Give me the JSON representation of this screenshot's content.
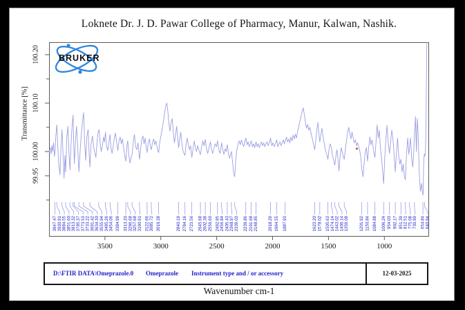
{
  "page": {
    "title": "Loknete Dr. J. D. Pawar College of Pharmacy, Manur, Kalwan, Nashik."
  },
  "logo": {
    "text": "BRUKER"
  },
  "footer": {
    "file_path": "D:\\FTIR DATA\\Omeprazole.0",
    "sample_name": "Omeprazole",
    "accessory": "Instrument type and / or accessory",
    "date": "12-03-2025"
  },
  "colors": {
    "trace": "#9b9ee2",
    "leader": "#9b9ee2",
    "peak_label": "#2525cc",
    "footer_text": "#2222cc",
    "logo_blue": "#2e86de",
    "marker": "#cc2020",
    "axis": "#5a5a5a",
    "text": "#141414"
  },
  "chart_data": {
    "type": "line",
    "title": "Loknete Dr. J. D. Pawar College of Pharmacy, Manur, Kalwan, Nashik.",
    "xlabel": "Wavenumber cm-1",
    "ylabel": "Transmittance [%]",
    "x_axis": {
      "min": 600,
      "max": 4000,
      "reversed": true,
      "ticks": [
        3500,
        3000,
        2500,
        2000,
        1500,
        1000
      ]
    },
    "y_axis": {
      "min": 99.86,
      "max": 100.226,
      "ticks": [
        100.2,
        100.1,
        100.0,
        99.95
      ],
      "tick_labels": [
        "100.20",
        "100.10",
        "100.00",
        "99.95"
      ],
      "minor_ticks": [
        100.15,
        100.05,
        99.9
      ]
    },
    "peak_labels": [
      "3947.47",
      "3930.91",
      "3884.55",
      "3851.60",
      "3813.32",
      "3785.37",
      "3773.53",
      "3733.22",
      "3691.42",
      "3634.30",
      "3555.94",
      "3495.26",
      "3454.06",
      "3384.99",
      "3313.20",
      "3296.68",
      "3257.68",
      "3190.91",
      "3122.66",
      "3085.72",
      "3019.38",
      "2840.19",
      "2784.16",
      "2723.56",
      "2645.68",
      "2602.38",
      "2556.60",
      "2492.95",
      "2456.84",
      "2405.43",
      "2368.97",
      "2339.03",
      "2239.86",
      "2191.68",
      "2148.85",
      "2018.29",
      "1964.55",
      "1887.93",
      "1623.20",
      "1578.02",
      "1505.63",
      "1474.14",
      "1443.02",
      "1406.14",
      "1359.08",
      "1201.92",
      "1150.84",
      "1084.88",
      "1006.24",
      "954.03",
      "902.17",
      "851.39",
      "812.51",
      "775.08",
      "730.99",
      "654.84",
      "640.94"
    ],
    "marker_point": {
      "wavenumber": 1246,
      "transmittance": 100.006
    },
    "trace": [
      [
        4000,
        99.998
      ],
      [
        3990,
        100.008
      ],
      [
        3982,
        99.995
      ],
      [
        3975,
        100.012
      ],
      [
        3968,
        100.0
      ],
      [
        3960,
        100.018
      ],
      [
        3952,
        99.99
      ],
      [
        3947,
        100.0
      ],
      [
        3940,
        100.03
      ],
      [
        3930,
        100.055
      ],
      [
        3922,
        100.01
      ],
      [
        3912,
        99.972
      ],
      [
        3902,
        99.952
      ],
      [
        3893,
        100.012
      ],
      [
        3884,
        100.045
      ],
      [
        3876,
        100.0
      ],
      [
        3866,
        99.945
      ],
      [
        3858,
        99.992
      ],
      [
        3851,
        99.958
      ],
      [
        3842,
        100.028
      ],
      [
        3831,
        100.052
      ],
      [
        3822,
        99.998
      ],
      [
        3813,
        99.962
      ],
      [
        3804,
        100.012
      ],
      [
        3794,
        100.052
      ],
      [
        3785,
        100.075
      ],
      [
        3779,
        100.008
      ],
      [
        3773,
        99.975
      ],
      [
        3764,
        100.022
      ],
      [
        3754,
        100.052
      ],
      [
        3744,
        100.012
      ],
      [
        3733,
        99.958
      ],
      [
        3722,
        100.002
      ],
      [
        3712,
        100.035
      ],
      [
        3701,
        100.062
      ],
      [
        3691,
        100.08
      ],
      [
        3681,
        100.018
      ],
      [
        3672,
        99.982
      ],
      [
        3661,
        100.032
      ],
      [
        3650,
        100.045
      ],
      [
        3641,
        99.992
      ],
      [
        3634,
        99.968
      ],
      [
        3624,
        100.015
      ],
      [
        3612,
        100.032
      ],
      [
        3601,
        100.01
      ],
      [
        3591,
        99.998
      ],
      [
        3581,
        99.988
      ],
      [
        3570,
        100.022
      ],
      [
        3560,
        100.042
      ],
      [
        3552,
        100.045
      ],
      [
        3543,
        100.018
      ],
      [
        3533,
        100.0
      ],
      [
        3523,
        100.012
      ],
      [
        3513,
        100.03
      ],
      [
        3504,
        100.02
      ],
      [
        3495,
        100.04
      ],
      [
        3486,
        100.012
      ],
      [
        3476,
        100.002
      ],
      [
        3465,
        100.018
      ],
      [
        3454,
        100.035
      ],
      [
        3446,
        100.008
      ],
      [
        3436,
        99.996
      ],
      [
        3426,
        100.012
      ],
      [
        3416,
        100.028
      ],
      [
        3406,
        100.038
      ],
      [
        3395,
        100.018
      ],
      [
        3384,
        100.002
      ],
      [
        3374,
        100.022
      ],
      [
        3364,
        100.03
      ],
      [
        3354,
        100.016
      ],
      [
        3344,
        100.026
      ],
      [
        3334,
        100.01
      ],
      [
        3324,
        99.992
      ],
      [
        3313,
        99.98
      ],
      [
        3304,
        100.012
      ],
      [
        3296,
        100.022
      ],
      [
        3286,
        99.992
      ],
      [
        3276,
        99.976
      ],
      [
        3266,
        99.988
      ],
      [
        3257,
        99.994
      ],
      [
        3246,
        100.022
      ],
      [
        3236,
        100.035
      ],
      [
        3226,
        100.01
      ],
      [
        3215,
        100.004
      ],
      [
        3204,
        100.018
      ],
      [
        3190,
        99.984
      ],
      [
        3180,
        100.006
      ],
      [
        3170,
        100.026
      ],
      [
        3160,
        100.032
      ],
      [
        3150,
        100.016
      ],
      [
        3140,
        100.028
      ],
      [
        3131,
        100.008
      ],
      [
        3122,
        99.998
      ],
      [
        3112,
        100.018
      ],
      [
        3102,
        100.026
      ],
      [
        3093,
        100.01
      ],
      [
        3085,
        100.004
      ],
      [
        3075,
        100.018
      ],
      [
        3064,
        100.026
      ],
      [
        3054,
        100.014
      ],
      [
        3044,
        100.022
      ],
      [
        3034,
        100.01
      ],
      [
        3025,
        100.0
      ],
      [
        3019,
        99.998
      ],
      [
        3009,
        100.02
      ],
      [
        2999,
        100.032
      ],
      [
        2988,
        100.048
      ],
      [
        2977,
        100.062
      ],
      [
        2966,
        100.08
      ],
      [
        2955,
        100.095
      ],
      [
        2946,
        100.1
      ],
      [
        2937,
        100.082
      ],
      [
        2928,
        100.058
      ],
      [
        2918,
        100.042
      ],
      [
        2908,
        100.06
      ],
      [
        2898,
        100.068
      ],
      [
        2888,
        100.038
      ],
      [
        2878,
        100.018
      ],
      [
        2868,
        100.036
      ],
      [
        2858,
        100.052
      ],
      [
        2849,
        100.028
      ],
      [
        2840,
        100.008
      ],
      [
        2831,
        100.026
      ],
      [
        2822,
        100.04
      ],
      [
        2812,
        100.018
      ],
      [
        2802,
        100.002
      ],
      [
        2793,
        99.996
      ],
      [
        2784,
        99.992
      ],
      [
        2774,
        100.014
      ],
      [
        2764,
        100.028
      ],
      [
        2754,
        100.014
      ],
      [
        2744,
        100.004
      ],
      [
        2734,
        100.012
      ],
      [
        2723,
        99.988
      ],
      [
        2712,
        100.006
      ],
      [
        2701,
        100.022
      ],
      [
        2691,
        100.008
      ],
      [
        2681,
        100.0
      ],
      [
        2671,
        100.012
      ],
      [
        2660,
        100.004
      ],
      [
        2652,
        99.996
      ],
      [
        2645,
        99.994
      ],
      [
        2635,
        100.01
      ],
      [
        2624,
        100.022
      ],
      [
        2613,
        100.012
      ],
      [
        2602,
        100.025
      ],
      [
        2591,
        100.006
      ],
      [
        2580,
        99.996
      ],
      [
        2569,
        100.008
      ],
      [
        2556,
        100.02
      ],
      [
        2546,
        100.004
      ],
      [
        2536,
        99.996
      ],
      [
        2525,
        100.006
      ],
      [
        2514,
        100.016
      ],
      [
        2503,
        100.01
      ],
      [
        2492,
        100.022
      ],
      [
        2481,
        100.004
      ],
      [
        2470,
        99.996
      ],
      [
        2456,
        100.018
      ],
      [
        2446,
        100.004
      ],
      [
        2436,
        99.994
      ],
      [
        2425,
        100.006
      ],
      [
        2415,
        100.0
      ],
      [
        2405,
        100.014
      ],
      [
        2395,
        99.996
      ],
      [
        2385,
        99.986
      ],
      [
        2376,
        99.994
      ],
      [
        2368,
        100.0
      ],
      [
        2358,
        99.978
      ],
      [
        2348,
        99.955
      ],
      [
        2339,
        99.948
      ],
      [
        2329,
        99.984
      ],
      [
        2319,
        100.004
      ],
      [
        2309,
        100.016
      ],
      [
        2299,
        100.022
      ],
      [
        2289,
        100.014
      ],
      [
        2279,
        100.024
      ],
      [
        2269,
        100.016
      ],
      [
        2259,
        100.01
      ],
      [
        2249,
        100.02
      ],
      [
        2239,
        100.028
      ],
      [
        2229,
        100.014
      ],
      [
        2219,
        100.02
      ],
      [
        2209,
        100.01
      ],
      [
        2200,
        100.016
      ],
      [
        2191,
        100.022
      ],
      [
        2181,
        100.01
      ],
      [
        2171,
        100.016
      ],
      [
        2160,
        100.008
      ],
      [
        2148,
        100.02
      ],
      [
        2139,
        100.01
      ],
      [
        2129,
        100.016
      ],
      [
        2119,
        100.008
      ],
      [
        2109,
        100.014
      ],
      [
        2100,
        100.02
      ],
      [
        2090,
        100.012
      ],
      [
        2080,
        100.018
      ],
      [
        2070,
        100.01
      ],
      [
        2060,
        100.016
      ],
      [
        2050,
        100.02
      ],
      [
        2040,
        100.012
      ],
      [
        2029,
        100.018
      ],
      [
        2018,
        100.028
      ],
      [
        2007,
        100.012
      ],
      [
        1997,
        100.018
      ],
      [
        1986,
        100.01
      ],
      [
        1975,
        100.016
      ],
      [
        1964,
        100.024
      ],
      [
        1954,
        100.01
      ],
      [
        1944,
        100.016
      ],
      [
        1934,
        100.02
      ],
      [
        1924,
        100.012
      ],
      [
        1914,
        100.018
      ],
      [
        1904,
        100.024
      ],
      [
        1895,
        100.016
      ],
      [
        1887,
        100.022
      ],
      [
        1876,
        100.03
      ],
      [
        1866,
        100.02
      ],
      [
        1856,
        100.026
      ],
      [
        1846,
        100.018
      ],
      [
        1836,
        100.03
      ],
      [
        1826,
        100.022
      ],
      [
        1816,
        100.034
      ],
      [
        1806,
        100.026
      ],
      [
        1796,
        100.036
      ],
      [
        1786,
        100.028
      ],
      [
        1776,
        100.042
      ],
      [
        1766,
        100.052
      ],
      [
        1756,
        100.062
      ],
      [
        1746,
        100.072
      ],
      [
        1736,
        100.082
      ],
      [
        1726,
        100.09
      ],
      [
        1716,
        100.076
      ],
      [
        1706,
        100.06
      ],
      [
        1696,
        100.048
      ],
      [
        1686,
        100.056
      ],
      [
        1676,
        100.044
      ],
      [
        1666,
        100.05
      ],
      [
        1656,
        100.038
      ],
      [
        1646,
        100.028
      ],
      [
        1635,
        100.016
      ],
      [
        1623,
        100.004
      ],
      [
        1614,
        100.022
      ],
      [
        1604,
        100.046
      ],
      [
        1594,
        100.06
      ],
      [
        1586,
        100.038
      ],
      [
        1578,
        100.02
      ],
      [
        1569,
        100.034
      ],
      [
        1559,
        100.048
      ],
      [
        1549,
        100.032
      ],
      [
        1539,
        100.018
      ],
      [
        1529,
        100.004
      ],
      [
        1517,
        99.995
      ],
      [
        1505,
        99.984
      ],
      [
        1495,
        100.004
      ],
      [
        1485,
        100.016
      ],
      [
        1474,
        100.008
      ],
      [
        1464,
        99.992
      ],
      [
        1453,
        99.982
      ],
      [
        1443,
        99.972
      ],
      [
        1434,
        99.99
      ],
      [
        1424,
        100.004
      ],
      [
        1415,
        99.984
      ],
      [
        1406,
        99.96
      ],
      [
        1396,
        99.99
      ],
      [
        1386,
        100.008
      ],
      [
        1376,
        99.998
      ],
      [
        1366,
        99.988
      ],
      [
        1359,
        99.984
      ],
      [
        1349,
        100.004
      ],
      [
        1339,
        100.022
      ],
      [
        1329,
        100.04
      ],
      [
        1319,
        100.05
      ],
      [
        1309,
        100.038
      ],
      [
        1299,
        100.026
      ],
      [
        1289,
        100.04
      ],
      [
        1279,
        100.028
      ],
      [
        1269,
        100.018
      ],
      [
        1259,
        100.024
      ],
      [
        1249,
        100.012
      ],
      [
        1239,
        100.018
      ],
      [
        1229,
        100.01
      ],
      [
        1219,
        100.0
      ],
      [
        1210,
        99.988
      ],
      [
        1201,
        99.962
      ],
      [
        1191,
        99.948
      ],
      [
        1181,
        99.976
      ],
      [
        1171,
        99.998
      ],
      [
        1161,
        100.008
      ],
      [
        1150,
        99.98
      ],
      [
        1140,
        100.008
      ],
      [
        1130,
        100.03
      ],
      [
        1120,
        100.014
      ],
      [
        1110,
        100.024
      ],
      [
        1100,
        100.008
      ],
      [
        1092,
        99.996
      ],
      [
        1084,
        99.988
      ],
      [
        1075,
        100.02
      ],
      [
        1065,
        100.055
      ],
      [
        1055,
        100.028
      ],
      [
        1045,
        100.044
      ],
      [
        1035,
        100.008
      ],
      [
        1025,
        99.984
      ],
      [
        1015,
        99.958
      ],
      [
        1006,
        99.934
      ],
      [
        996,
        99.988
      ],
      [
        986,
        100.028
      ],
      [
        976,
        100.054
      ],
      [
        966,
        100.018
      ],
      [
        954,
        99.996
      ],
      [
        944,
        100.02
      ],
      [
        934,
        100.044
      ],
      [
        924,
        100.028
      ],
      [
        914,
        99.998
      ],
      [
        902,
        99.958
      ],
      [
        892,
        99.998
      ],
      [
        882,
        100.028
      ],
      [
        872,
        99.992
      ],
      [
        862,
        99.974
      ],
      [
        851,
        99.984
      ],
      [
        841,
        99.958
      ],
      [
        831,
        99.974
      ],
      [
        821,
        99.948
      ],
      [
        812,
        99.942
      ],
      [
        801,
        99.998
      ],
      [
        791,
        100.028
      ],
      [
        781,
        99.994
      ],
      [
        775,
        100.008
      ],
      [
        766,
        100.028
      ],
      [
        756,
        99.988
      ],
      [
        746,
        99.968
      ],
      [
        738,
        99.998
      ],
      [
        730,
        100.038
      ],
      [
        722,
        100.072
      ],
      [
        714,
        100.0
      ],
      [
        706,
        100.068
      ],
      [
        698,
        100.038
      ],
      [
        688,
        99.958
      ],
      [
        678,
        99.918
      ],
      [
        668,
        99.934
      ],
      [
        660,
        99.916
      ],
      [
        654,
        99.91
      ],
      [
        648,
        99.975
      ],
      [
        643,
        99.995
      ],
      [
        638,
        99.99
      ],
      [
        633,
        100.0
      ],
      [
        628,
        100.05
      ],
      [
        624,
        100.14
      ],
      [
        621,
        100.21
      ],
      [
        619,
        100.226
      ]
    ]
  }
}
